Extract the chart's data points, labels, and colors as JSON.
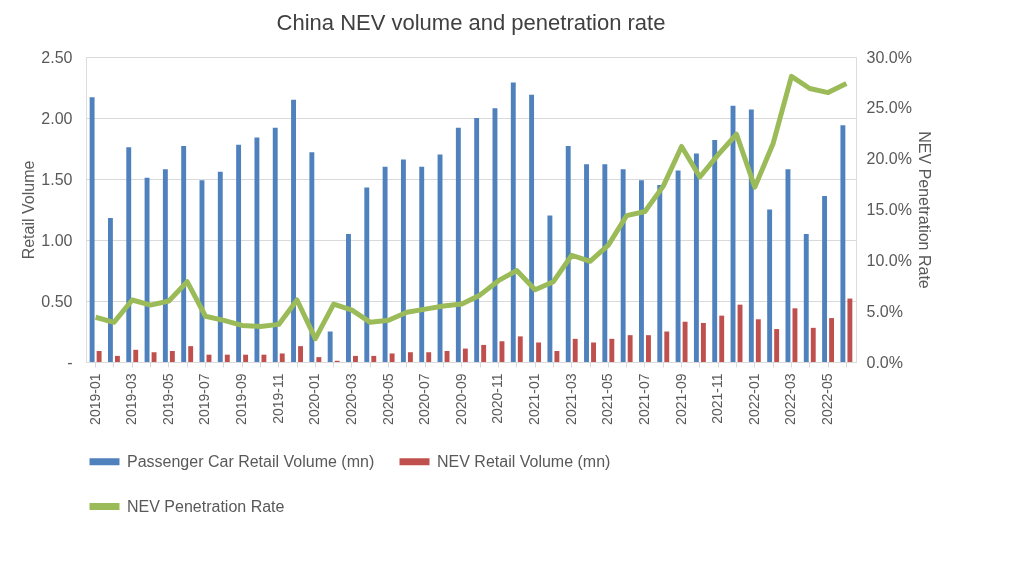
{
  "chart_data": {
    "type": "bar",
    "title": "China NEV volume and penetration rate",
    "ylabel": "Retail Volume",
    "y2label": "NEV Penetration Rate",
    "categories": [
      "2019-01",
      null,
      "2019-03",
      null,
      "2019-05",
      null,
      "2019-07",
      null,
      "2019-09",
      null,
      "2019-11",
      null,
      "2020-01",
      null,
      "2020-03",
      null,
      "2020-05",
      null,
      "2020-07",
      null,
      "2020-09",
      null,
      "2020-11",
      null,
      "2021-01",
      null,
      "2021-03",
      null,
      "2021-05",
      null,
      "2021-07",
      null,
      "2021-09",
      null,
      "2021-11",
      null,
      "2022-01",
      null,
      "2022-03",
      null,
      "2022-05",
      null
    ],
    "series": [
      {
        "name": "Passenger Car Retail Volume (mn)",
        "color": "#4f81bd",
        "values": [
          2.17,
          1.18,
          1.76,
          1.51,
          1.58,
          1.77,
          1.49,
          1.56,
          1.78,
          1.84,
          1.92,
          2.15,
          1.72,
          0.25,
          1.05,
          1.43,
          1.6,
          1.66,
          1.6,
          1.7,
          1.92,
          2.0,
          2.08,
          2.29,
          2.19,
          1.2,
          1.77,
          1.62,
          1.62,
          1.58,
          1.49,
          1.45,
          1.57,
          1.71,
          1.82,
          2.1,
          2.07,
          1.25,
          1.58,
          1.05,
          1.36,
          1.94
        ]
      },
      {
        "name": "NEV Retail Volume (mn)",
        "color": "#c0504d",
        "values": [
          0.09,
          0.05,
          0.1,
          0.08,
          0.09,
          0.13,
          0.06,
          0.06,
          0.06,
          0.06,
          0.07,
          0.13,
          0.04,
          0.01,
          0.05,
          0.05,
          0.07,
          0.08,
          0.08,
          0.09,
          0.11,
          0.14,
          0.17,
          0.21,
          0.16,
          0.09,
          0.19,
          0.16,
          0.19,
          0.22,
          0.22,
          0.25,
          0.33,
          0.32,
          0.38,
          0.47,
          0.35,
          0.27,
          0.44,
          0.28,
          0.36,
          0.52
        ]
      },
      {
        "name": "NEV Penetration Rate",
        "color": "#9bbb59",
        "type": "line",
        "axis": "y2",
        "values": [
          4.4,
          3.9,
          6.1,
          5.6,
          6.0,
          7.9,
          4.5,
          4.1,
          3.6,
          3.5,
          3.7,
          6.1,
          2.3,
          5.7,
          5.1,
          3.9,
          4.1,
          4.9,
          5.2,
          5.5,
          5.7,
          6.6,
          8.0,
          9.0,
          7.1,
          7.9,
          10.5,
          9.9,
          11.5,
          14.4,
          14.8,
          17.3,
          21.2,
          18.2,
          20.4,
          22.4,
          17.2,
          21.5,
          28.1,
          26.9,
          26.5,
          27.4
        ]
      }
    ],
    "ylim": [
      0,
      2.5
    ],
    "yticks": [
      {
        "value": 0,
        "label": "-"
      },
      {
        "value": 0.5,
        "label": "0.50"
      },
      {
        "value": 1,
        "label": "1.00"
      },
      {
        "value": 1.5,
        "label": "1.50"
      },
      {
        "value": 2,
        "label": "2.00"
      },
      {
        "value": 2.5,
        "label": "2.50"
      }
    ],
    "y2lim": [
      0,
      30
    ],
    "y2ticks": [
      {
        "value": 0,
        "label": "0.0%"
      },
      {
        "value": 5,
        "label": "5.0%"
      },
      {
        "value": 10,
        "label": "10.0%"
      },
      {
        "value": 15,
        "label": "15.0%"
      },
      {
        "value": 20,
        "label": "20.0%"
      },
      {
        "value": 25,
        "label": "25.0%"
      },
      {
        "value": 30,
        "label": "30.0%"
      }
    ],
    "grid": "y",
    "legend": "bottom",
    "line_style": "solid",
    "marker": "none"
  }
}
